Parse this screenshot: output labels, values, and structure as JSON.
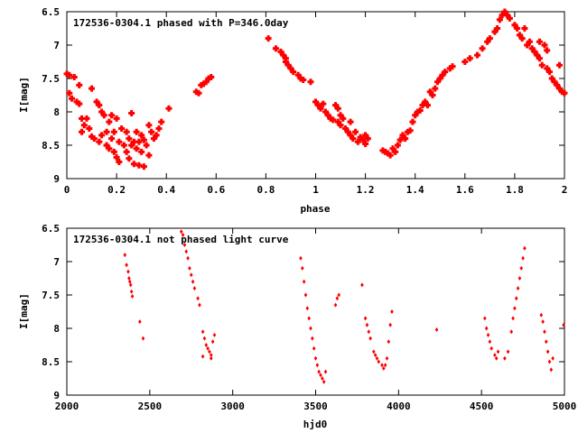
{
  "chart_data": [
    {
      "type": "scatter",
      "title": "172536-0304.1 phased with P=346.0day",
      "xlabel": "phase",
      "ylabel": "I[mag]",
      "xlim": [
        0,
        2
      ],
      "ylim": [
        9,
        6.5
      ],
      "y_inverted": true,
      "xticks": [
        "0",
        "0.2",
        "0.4",
        "0.6",
        "0.8",
        "1",
        "1.2",
        "1.4",
        "1.6",
        "1.8",
        "2"
      ],
      "xtick_values": [
        0,
        0.2,
        0.4,
        0.6,
        0.8,
        1.0,
        1.2,
        1.4,
        1.6,
        1.8,
        2.0
      ],
      "yticks": [
        "6.5",
        "7",
        "7.5",
        "8",
        "8.5",
        "9"
      ],
      "ytick_values": [
        6.5,
        7,
        7.5,
        8,
        8.5,
        9
      ],
      "grid": false,
      "marker": "plus-thick",
      "color": "#ff0000",
      "points": [
        [
          0.0,
          7.43
        ],
        [
          0.01,
          7.72
        ],
        [
          0.01,
          7.45
        ],
        [
          0.02,
          7.8
        ],
        [
          0.03,
          7.48
        ],
        [
          0.04,
          7.85
        ],
        [
          0.05,
          7.88
        ],
        [
          0.05,
          7.6
        ],
        [
          0.06,
          8.1
        ],
        [
          0.06,
          8.3
        ],
        [
          0.07,
          8.2
        ],
        [
          0.08,
          8.1
        ],
        [
          0.09,
          8.25
        ],
        [
          0.1,
          7.65
        ],
        [
          0.1,
          8.37
        ],
        [
          0.11,
          8.4
        ],
        [
          0.12,
          7.85
        ],
        [
          0.13,
          7.9
        ],
        [
          0.13,
          8.45
        ],
        [
          0.14,
          8.0
        ],
        [
          0.14,
          8.35
        ],
        [
          0.15,
          8.05
        ],
        [
          0.16,
          8.5
        ],
        [
          0.16,
          8.3
        ],
        [
          0.17,
          8.15
        ],
        [
          0.17,
          8.55
        ],
        [
          0.18,
          8.4
        ],
        [
          0.18,
          8.05
        ],
        [
          0.19,
          8.6
        ],
        [
          0.19,
          8.3
        ],
        [
          0.2,
          8.1
        ],
        [
          0.2,
          8.68
        ],
        [
          0.21,
          8.45
        ],
        [
          0.21,
          8.75
        ],
        [
          0.22,
          8.25
        ],
        [
          0.23,
          8.5
        ],
        [
          0.24,
          8.3
        ],
        [
          0.24,
          8.6
        ],
        [
          0.25,
          8.4
        ],
        [
          0.25,
          8.7
        ],
        [
          0.26,
          8.5
        ],
        [
          0.26,
          8.02
        ],
        [
          0.27,
          8.45
        ],
        [
          0.27,
          8.78
        ],
        [
          0.28,
          8.55
        ],
        [
          0.28,
          8.3
        ],
        [
          0.29,
          8.8
        ],
        [
          0.29,
          8.45
        ],
        [
          0.3,
          8.35
        ],
        [
          0.3,
          8.6
        ],
        [
          0.31,
          8.82
        ],
        [
          0.31,
          8.42
        ],
        [
          0.32,
          8.5
        ],
        [
          0.33,
          8.2
        ],
        [
          0.33,
          8.65
        ],
        [
          0.34,
          8.3
        ],
        [
          0.35,
          8.4
        ],
        [
          0.36,
          8.35
        ],
        [
          0.37,
          8.25
        ],
        [
          0.38,
          8.15
        ],
        [
          0.41,
          7.95
        ],
        [
          0.52,
          7.7
        ],
        [
          0.53,
          7.72
        ],
        [
          0.54,
          7.6
        ],
        [
          0.55,
          7.58
        ],
        [
          0.56,
          7.55
        ],
        [
          0.57,
          7.5
        ],
        [
          0.58,
          7.48
        ],
        [
          0.81,
          6.9
        ],
        [
          0.84,
          7.05
        ],
        [
          0.86,
          7.1
        ],
        [
          0.87,
          7.15
        ],
        [
          0.88,
          7.2
        ],
        [
          0.88,
          7.25
        ],
        [
          0.89,
          7.3
        ],
        [
          0.9,
          7.35
        ],
        [
          0.91,
          7.4
        ],
        [
          0.93,
          7.45
        ],
        [
          0.94,
          7.5
        ],
        [
          0.95,
          7.52
        ],
        [
          0.98,
          7.55
        ],
        [
          1.0,
          7.85
        ],
        [
          1.01,
          7.9
        ],
        [
          1.02,
          7.95
        ],
        [
          1.03,
          7.88
        ],
        [
          1.04,
          8.0
        ],
        [
          1.05,
          8.05
        ],
        [
          1.06,
          8.1
        ],
        [
          1.07,
          8.12
        ],
        [
          1.08,
          7.9
        ],
        [
          1.09,
          8.15
        ],
        [
          1.09,
          7.95
        ],
        [
          1.1,
          8.2
        ],
        [
          1.1,
          8.05
        ],
        [
          1.11,
          8.1
        ],
        [
          1.12,
          8.25
        ],
        [
          1.13,
          8.3
        ],
        [
          1.14,
          8.35
        ],
        [
          1.14,
          8.15
        ],
        [
          1.15,
          8.4
        ],
        [
          1.16,
          8.3
        ],
        [
          1.17,
          8.45
        ],
        [
          1.18,
          8.38
        ],
        [
          1.19,
          8.42
        ],
        [
          1.2,
          8.48
        ],
        [
          1.2,
          8.35
        ],
        [
          1.21,
          8.4
        ],
        [
          1.27,
          8.58
        ],
        [
          1.28,
          8.6
        ],
        [
          1.29,
          8.62
        ],
        [
          1.3,
          8.65
        ],
        [
          1.31,
          8.55
        ],
        [
          1.32,
          8.6
        ],
        [
          1.33,
          8.5
        ],
        [
          1.34,
          8.42
        ],
        [
          1.35,
          8.35
        ],
        [
          1.36,
          8.4
        ],
        [
          1.37,
          8.3
        ],
        [
          1.38,
          8.28
        ],
        [
          1.39,
          8.15
        ],
        [
          1.4,
          8.05
        ],
        [
          1.41,
          8.0
        ],
        [
          1.42,
          7.98
        ],
        [
          1.43,
          7.9
        ],
        [
          1.44,
          7.85
        ],
        [
          1.45,
          7.9
        ],
        [
          1.46,
          7.7
        ],
        [
          1.47,
          7.75
        ],
        [
          1.48,
          7.65
        ],
        [
          1.49,
          7.55
        ],
        [
          1.5,
          7.5
        ],
        [
          1.51,
          7.45
        ],
        [
          1.52,
          7.4
        ],
        [
          1.54,
          7.35
        ],
        [
          1.55,
          7.32
        ],
        [
          1.6,
          7.25
        ],
        [
          1.62,
          7.2
        ],
        [
          1.65,
          7.15
        ],
        [
          1.67,
          7.05
        ],
        [
          1.69,
          6.95
        ],
        [
          1.7,
          6.9
        ],
        [
          1.72,
          6.8
        ],
        [
          1.73,
          6.75
        ],
        [
          1.74,
          6.62
        ],
        [
          1.75,
          6.55
        ],
        [
          1.76,
          6.5
        ],
        [
          1.77,
          6.55
        ],
        [
          1.78,
          6.6
        ],
        [
          1.8,
          6.7
        ],
        [
          1.81,
          6.75
        ],
        [
          1.82,
          6.85
        ],
        [
          1.83,
          6.9
        ],
        [
          1.84,
          6.75
        ],
        [
          1.85,
          7.0
        ],
        [
          1.86,
          6.95
        ],
        [
          1.87,
          7.05
        ],
        [
          1.88,
          7.1
        ],
        [
          1.89,
          7.15
        ],
        [
          1.9,
          7.2
        ],
        [
          1.9,
          6.95
        ],
        [
          1.91,
          7.3
        ],
        [
          1.92,
          7.0
        ],
        [
          1.93,
          7.35
        ],
        [
          1.93,
          7.08
        ],
        [
          1.94,
          7.4
        ],
        [
          1.95,
          7.5
        ],
        [
          1.96,
          7.55
        ],
        [
          1.97,
          7.6
        ],
        [
          1.98,
          7.3
        ],
        [
          1.98,
          7.65
        ],
        [
          1.99,
          7.7
        ],
        [
          2.0,
          7.72
        ]
      ]
    },
    {
      "type": "scatter",
      "title": "172536-0304.1 not phased light curve",
      "xlabel": "hjd0",
      "ylabel": "I[mag]",
      "xlim": [
        2000,
        5000
      ],
      "ylim": [
        9,
        6.5
      ],
      "y_inverted": true,
      "xticks": [
        "2000",
        "2500",
        "3000",
        "3500",
        "4000",
        "4500",
        "5000"
      ],
      "xtick_values": [
        2000,
        2500,
        3000,
        3500,
        4000,
        4500,
        5000
      ],
      "yticks": [
        "6.5",
        "7",
        "7.5",
        "8",
        "8.5",
        "9"
      ],
      "ytick_values": [
        6.5,
        7,
        7.5,
        8,
        8.5,
        9
      ],
      "grid": false,
      "marker": "diamond",
      "color": "#ff0000",
      "points": [
        [
          2350,
          6.9
        ],
        [
          2360,
          7.05
        ],
        [
          2370,
          7.15
        ],
        [
          2375,
          7.25
        ],
        [
          2380,
          7.3
        ],
        [
          2385,
          7.35
        ],
        [
          2390,
          7.45
        ],
        [
          2395,
          7.52
        ],
        [
          2440,
          7.9
        ],
        [
          2460,
          8.15
        ],
        [
          2690,
          6.55
        ],
        [
          2700,
          6.6
        ],
        [
          2710,
          6.75
        ],
        [
          2720,
          6.85
        ],
        [
          2730,
          6.95
        ],
        [
          2740,
          7.1
        ],
        [
          2750,
          7.2
        ],
        [
          2760,
          7.3
        ],
        [
          2770,
          7.4
        ],
        [
          2790,
          7.55
        ],
        [
          2800,
          7.65
        ],
        [
          2820,
          8.05
        ],
        [
          2830,
          8.15
        ],
        [
          2840,
          8.25
        ],
        [
          2850,
          8.3
        ],
        [
          2860,
          8.35
        ],
        [
          2870,
          8.4
        ],
        [
          2880,
          8.2
        ],
        [
          2890,
          8.1
        ],
        [
          2820,
          8.42
        ],
        [
          2870,
          8.45
        ],
        [
          3410,
          6.95
        ],
        [
          3420,
          7.1
        ],
        [
          3430,
          7.3
        ],
        [
          3440,
          7.5
        ],
        [
          3450,
          7.7
        ],
        [
          3460,
          7.85
        ],
        [
          3470,
          8.0
        ],
        [
          3480,
          8.15
        ],
        [
          3490,
          8.3
        ],
        [
          3500,
          8.45
        ],
        [
          3510,
          8.55
        ],
        [
          3520,
          8.65
        ],
        [
          3530,
          8.7
        ],
        [
          3540,
          8.75
        ],
        [
          3550,
          8.8
        ],
        [
          3560,
          8.65
        ],
        [
          3620,
          7.65
        ],
        [
          3630,
          7.55
        ],
        [
          3640,
          7.5
        ],
        [
          3780,
          7.35
        ],
        [
          3800,
          7.85
        ],
        [
          3810,
          7.95
        ],
        [
          3820,
          8.05
        ],
        [
          3830,
          8.15
        ],
        [
          3850,
          8.35
        ],
        [
          3860,
          8.4
        ],
        [
          3870,
          8.45
        ],
        [
          3880,
          8.5
        ],
        [
          3900,
          8.55
        ],
        [
          3910,
          8.6
        ],
        [
          3920,
          8.55
        ],
        [
          3930,
          8.45
        ],
        [
          3940,
          8.2
        ],
        [
          3950,
          7.95
        ],
        [
          3960,
          7.75
        ],
        [
          4230,
          8.02
        ],
        [
          4520,
          7.85
        ],
        [
          4530,
          8.0
        ],
        [
          4540,
          8.1
        ],
        [
          4550,
          8.2
        ],
        [
          4560,
          8.3
        ],
        [
          4580,
          8.4
        ],
        [
          4590,
          8.45
        ],
        [
          4600,
          8.35
        ],
        [
          4640,
          8.45
        ],
        [
          4660,
          8.35
        ],
        [
          4680,
          8.05
        ],
        [
          4690,
          7.85
        ],
        [
          4700,
          7.7
        ],
        [
          4710,
          7.55
        ],
        [
          4720,
          7.4
        ],
        [
          4730,
          7.25
        ],
        [
          4740,
          7.1
        ],
        [
          4750,
          6.95
        ],
        [
          4760,
          6.8
        ],
        [
          4860,
          7.8
        ],
        [
          4870,
          7.9
        ],
        [
          4880,
          8.05
        ],
        [
          4890,
          8.2
        ],
        [
          4900,
          8.35
        ],
        [
          4910,
          8.5
        ],
        [
          4920,
          8.62
        ],
        [
          4930,
          8.45
        ],
        [
          4995,
          7.95
        ]
      ]
    }
  ]
}
